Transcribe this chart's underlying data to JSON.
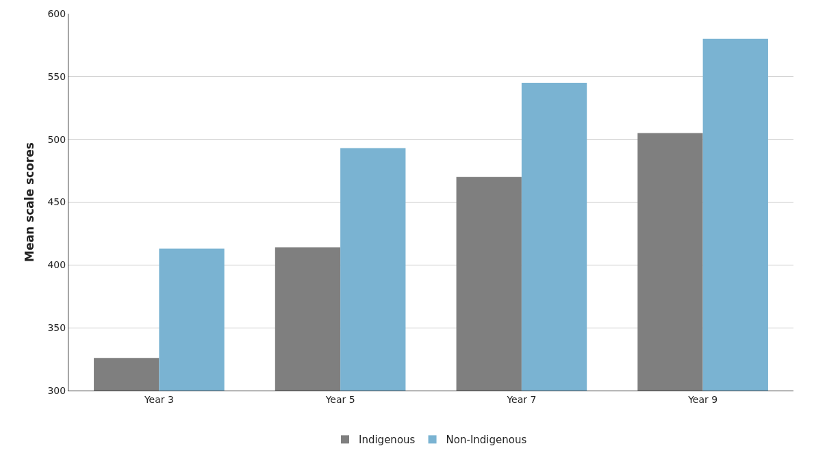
{
  "chart_data": {
    "type": "bar",
    "ylabel": "Mean scale scores",
    "categories": [
      "Year 3",
      "Year 5",
      "Year 7",
      "Year 9"
    ],
    "series": [
      {
        "name": "Indigenous",
        "color": "#7f7f7f",
        "values": [
          326,
          414,
          470,
          505
        ]
      },
      {
        "name": "Non-Indigenous",
        "color": "#7ab3d2",
        "values": [
          413,
          493,
          545,
          580
        ]
      }
    ],
    "ylim": [
      300,
      600
    ],
    "yticks": [
      300,
      350,
      400,
      450,
      500,
      550,
      600
    ],
    "grid": "y",
    "legend": "bottom"
  }
}
